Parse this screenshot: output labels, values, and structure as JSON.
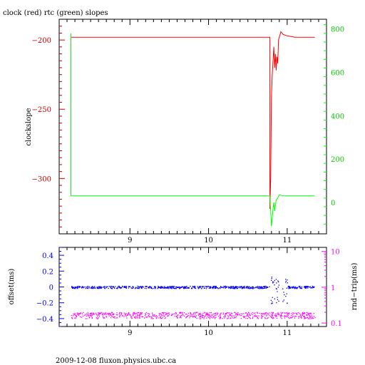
{
  "title": "clock (red) rtc (green) slopes",
  "footer": "2009-12-08 fluxon.physics.ubc.ca",
  "colors": {
    "red": "#ff0000",
    "green": "#00ff00",
    "blue": "#0000ff",
    "magenta": "#ff00ff",
    "darkred": "#cc0000",
    "axis": "#000000"
  },
  "chart_data": [
    {
      "type": "line",
      "ylabel": "clockslope",
      "y2label": "",
      "xlim": [
        8.1,
        11.5
      ],
      "ylim": [
        -340,
        -185
      ],
      "y2lim": [
        -145,
        845
      ],
      "xticks": [
        9,
        10,
        11
      ],
      "xtick_labels": [
        "9",
        "10",
        "11"
      ],
      "yticks": [
        -200,
        -250,
        -300
      ],
      "ytick_labels": [
        "−200",
        "−250",
        "−300"
      ],
      "y2ticks": [
        0,
        200,
        400,
        600,
        800
      ],
      "y2tick_labels": [
        "0",
        "200",
        "400",
        "600",
        "800"
      ],
      "series": [
        {
          "color": "red",
          "axis": "left",
          "x": [
            8.25,
            10.78,
            10.78,
            10.79,
            10.8,
            10.81,
            10.82,
            10.83,
            10.84,
            10.85,
            10.86,
            10.87,
            10.88,
            10.89,
            10.9,
            10.92,
            10.95,
            11.0,
            11.1,
            11.2,
            11.35
          ],
          "y": [
            -198,
            -198,
            -322,
            -300,
            -240,
            -225,
            -215,
            -205,
            -220,
            -210,
            -222,
            -212,
            -217,
            -200,
            -198,
            -194,
            -196,
            -197,
            -198,
            -198,
            -198
          ]
        },
        {
          "color": "green",
          "axis": "right",
          "x": [
            8.25,
            8.25,
            8.25,
            10.78,
            10.8,
            10.81,
            10.82,
            10.83,
            10.84,
            10.86,
            10.88,
            10.9,
            10.95,
            11.0,
            11.1,
            11.2,
            11.35
          ],
          "y": [
            760,
            780,
            30,
            30,
            -110,
            -70,
            -30,
            0,
            -40,
            10,
            20,
            35,
            30,
            30,
            30,
            30,
            30
          ]
        }
      ]
    },
    {
      "type": "scatter",
      "ylabel": "offset(ms)",
      "y2label": "rnd−trip(ms)",
      "xlim": [
        8.1,
        11.5
      ],
      "ylim": [
        -0.5,
        0.5
      ],
      "y2scale": "log",
      "y2lim": [
        0.08,
        13
      ],
      "xticks": [
        9,
        10,
        11
      ],
      "xtick_labels": [
        "9",
        "10",
        "11"
      ],
      "yticks": [
        0.4,
        0.2,
        0,
        -0.2,
        -0.4
      ],
      "ytick_labels": [
        "0.4",
        "0.2",
        "0",
        "−0.2",
        "−0.4"
      ],
      "y2ticks": [
        10,
        1,
        0.1
      ],
      "y2tick_labels": [
        "10",
        "1",
        "0.1"
      ],
      "series": [
        {
          "color": "blue",
          "axis": "left",
          "x_range": [
            8.25,
            11.35
          ],
          "level": 0.0,
          "spread": 0.015
        },
        {
          "color": "magenta",
          "axis": "right",
          "x_range": [
            8.25,
            11.35
          ],
          "level": 0.17,
          "spread": 0.02
        }
      ]
    }
  ]
}
